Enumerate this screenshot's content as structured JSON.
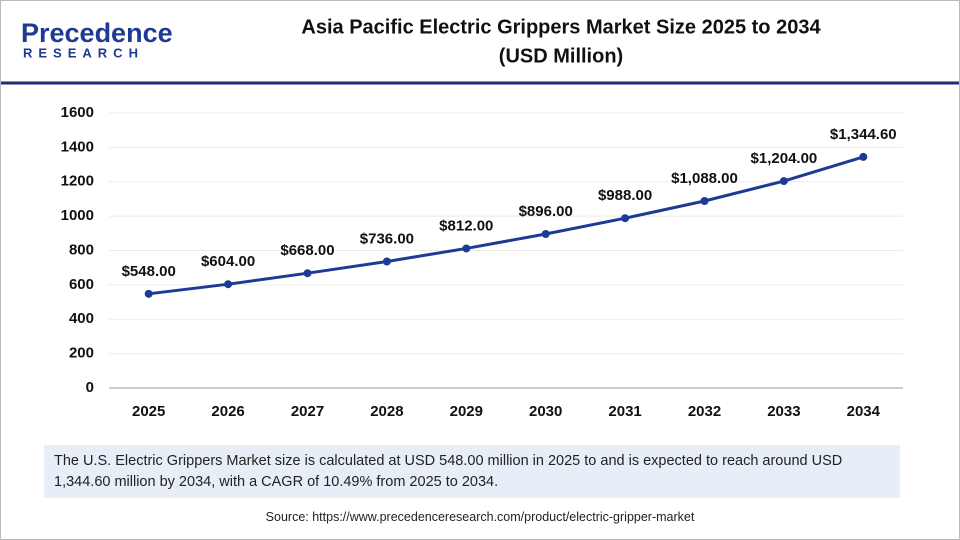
{
  "logo": {
    "name": "Precedence",
    "tagline": "RESEARCH"
  },
  "chart_data": {
    "type": "line",
    "title": "Asia Pacific Electric Grippers Market Size 2025 to 2034",
    "subtitle": "(USD Million)",
    "categories": [
      "2025",
      "2026",
      "2027",
      "2028",
      "2029",
      "2030",
      "2031",
      "2032",
      "2033",
      "2034"
    ],
    "series": [
      {
        "name": "Market Size",
        "color": "#1f3a93",
        "values": [
          548,
          604,
          668,
          736,
          812,
          896,
          988,
          1088,
          1204,
          1344.6
        ],
        "value_labels": [
          "$548.00",
          "$604.00",
          "$668.00",
          "$736.00",
          "$812.00",
          "$896.00",
          "$988.00",
          "$1,088.00",
          "$1,204.00",
          "$1,344.60"
        ]
      }
    ],
    "ylim": [
      0,
      1600
    ],
    "yticks": [
      0,
      200,
      400,
      600,
      800,
      1000,
      1200,
      1400,
      1600
    ],
    "grid": true
  },
  "footnote": "The U.S. Electric Grippers Market size is calculated at USD 548.00 million in 2025 to and is expected to reach around USD 1,344.60 million by 2034, with a CAGR of 10.49% from 2025 to 2034.",
  "source": "Source: https://www.precedenceresearch.com/product/electric-gripper-market"
}
